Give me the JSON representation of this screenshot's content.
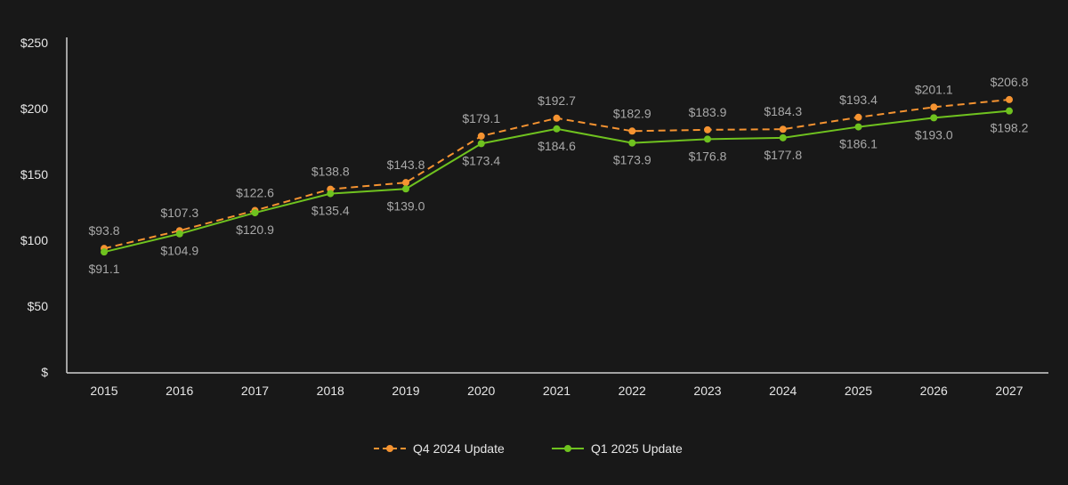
{
  "chart_data": {
    "type": "line",
    "title": "",
    "xlabel": "",
    "ylabel": "",
    "categories": [
      "2015",
      "2016",
      "2017",
      "2018",
      "2019",
      "2020",
      "2021",
      "2022",
      "2023",
      "2024",
      "2025",
      "2026",
      "2027"
    ],
    "ylim": [
      0,
      250
    ],
    "yticks": [
      0,
      50,
      100,
      150,
      200,
      250
    ],
    "ytick_labels": [
      "$",
      "$50",
      "$100",
      "$150",
      "$200",
      "$250"
    ],
    "grid": false,
    "legend_position": "bottom",
    "data_label_prefix": "$",
    "series": [
      {
        "name": "Q4 2024 Update",
        "color": "#f59331",
        "line_style": "dashed",
        "label_position": "above",
        "values": [
          93.8,
          107.3,
          122.6,
          138.8,
          143.8,
          179.1,
          192.7,
          182.9,
          183.9,
          184.3,
          193.4,
          201.1,
          206.8
        ]
      },
      {
        "name": "Q1 2025 Update",
        "color": "#6fc21f",
        "line_style": "solid",
        "label_position": "below",
        "values": [
          91.1,
          104.9,
          120.9,
          135.4,
          139.0,
          173.4,
          184.6,
          173.9,
          176.8,
          177.8,
          186.1,
          193.0,
          198.2
        ]
      }
    ]
  }
}
